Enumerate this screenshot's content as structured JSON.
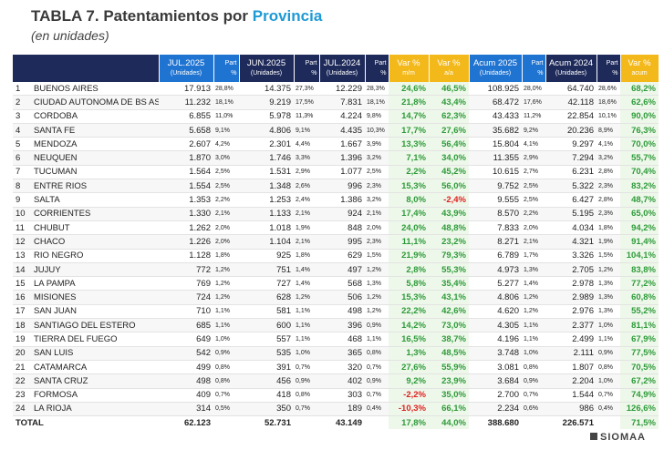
{
  "header": {
    "title": "TABLA 7. Patentamientos por",
    "title_highlight": "Provincia",
    "subtitle": "(en unidades)"
  },
  "table": {
    "columns": [
      {
        "label": "JUL.2025",
        "sub": "(Unidades)"
      },
      {
        "label": "Part",
        "sub": "%"
      },
      {
        "label": "JUN.2025",
        "sub": "(Unidades)"
      },
      {
        "label": "Part",
        "sub": "%"
      },
      {
        "label": "JUL.2024",
        "sub": "(Unidades)"
      },
      {
        "label": "Part",
        "sub": "%"
      },
      {
        "label": "Var %",
        "sub": "m/m"
      },
      {
        "label": "Var %",
        "sub": "a/a"
      },
      {
        "label": "Acum 2025",
        "sub": "(Unidades)"
      },
      {
        "label": "Part",
        "sub": "%"
      },
      {
        "label": "Acum 2024",
        "sub": "(Unidades)"
      },
      {
        "label": "Part",
        "sub": "%"
      },
      {
        "label": "Var %",
        "sub": "acum"
      }
    ],
    "rows": [
      [
        "1",
        "BUENOS AIRES",
        "17.913",
        "28,8%",
        "14.375",
        "27,3%",
        "12.229",
        "28,3%",
        "24,6%",
        "46,5%",
        "108.925",
        "28,0%",
        "64.740",
        "28,6%",
        "68,2%"
      ],
      [
        "2",
        "CIUDAD AUTONOMA DE BS AS",
        "11.232",
        "18,1%",
        "9.219",
        "17,5%",
        "7.831",
        "18,1%",
        "21,8%",
        "43,4%",
        "68.472",
        "17,6%",
        "42.118",
        "18,6%",
        "62,6%"
      ],
      [
        "3",
        "CORDOBA",
        "6.855",
        "11,0%",
        "5.978",
        "11,3%",
        "4.224",
        "9,8%",
        "14,7%",
        "62,3%",
        "43.433",
        "11,2%",
        "22.854",
        "10,1%",
        "90,0%"
      ],
      [
        "4",
        "SANTA FE",
        "5.658",
        "9,1%",
        "4.806",
        "9,1%",
        "4.435",
        "10,3%",
        "17,7%",
        "27,6%",
        "35.682",
        "9,2%",
        "20.236",
        "8,9%",
        "76,3%"
      ],
      [
        "5",
        "MENDOZA",
        "2.607",
        "4,2%",
        "2.301",
        "4,4%",
        "1.667",
        "3,9%",
        "13,3%",
        "56,4%",
        "15.804",
        "4,1%",
        "9.297",
        "4,1%",
        "70,0%"
      ],
      [
        "6",
        "NEUQUEN",
        "1.870",
        "3,0%",
        "1.746",
        "3,3%",
        "1.396",
        "3,2%",
        "7,1%",
        "34,0%",
        "11.355",
        "2,9%",
        "7.294",
        "3,2%",
        "55,7%"
      ],
      [
        "7",
        "TUCUMAN",
        "1.564",
        "2,5%",
        "1.531",
        "2,9%",
        "1.077",
        "2,5%",
        "2,2%",
        "45,2%",
        "10.615",
        "2,7%",
        "6.231",
        "2,8%",
        "70,4%"
      ],
      [
        "8",
        "ENTRE RIOS",
        "1.554",
        "2,5%",
        "1.348",
        "2,6%",
        "996",
        "2,3%",
        "15,3%",
        "56,0%",
        "9.752",
        "2,5%",
        "5.322",
        "2,3%",
        "83,2%"
      ],
      [
        "9",
        "SALTA",
        "1.353",
        "2,2%",
        "1.253",
        "2,4%",
        "1.386",
        "3,2%",
        "8,0%",
        "-2,4%",
        "9.555",
        "2,5%",
        "6.427",
        "2,8%",
        "48,7%"
      ],
      [
        "10",
        "CORRIENTES",
        "1.330",
        "2,1%",
        "1.133",
        "2,1%",
        "924",
        "2,1%",
        "17,4%",
        "43,9%",
        "8.570",
        "2,2%",
        "5.195",
        "2,3%",
        "65,0%"
      ],
      [
        "11",
        "CHUBUT",
        "1.262",
        "2,0%",
        "1.018",
        "1,9%",
        "848",
        "2,0%",
        "24,0%",
        "48,8%",
        "7.833",
        "2,0%",
        "4.034",
        "1,8%",
        "94,2%"
      ],
      [
        "12",
        "CHACO",
        "1.226",
        "2,0%",
        "1.104",
        "2,1%",
        "995",
        "2,3%",
        "11,1%",
        "23,2%",
        "8.271",
        "2,1%",
        "4.321",
        "1,9%",
        "91,4%"
      ],
      [
        "13",
        "RIO NEGRO",
        "1.128",
        "1,8%",
        "925",
        "1,8%",
        "629",
        "1,5%",
        "21,9%",
        "79,3%",
        "6.789",
        "1,7%",
        "3.326",
        "1,5%",
        "104,1%"
      ],
      [
        "14",
        "JUJUY",
        "772",
        "1,2%",
        "751",
        "1,4%",
        "497",
        "1,2%",
        "2,8%",
        "55,3%",
        "4.973",
        "1,3%",
        "2.705",
        "1,2%",
        "83,8%"
      ],
      [
        "15",
        "LA PAMPA",
        "769",
        "1,2%",
        "727",
        "1,4%",
        "568",
        "1,3%",
        "5,8%",
        "35,4%",
        "5.277",
        "1,4%",
        "2.978",
        "1,3%",
        "77,2%"
      ],
      [
        "16",
        "MISIONES",
        "724",
        "1,2%",
        "628",
        "1,2%",
        "506",
        "1,2%",
        "15,3%",
        "43,1%",
        "4.806",
        "1,2%",
        "2.989",
        "1,3%",
        "60,8%"
      ],
      [
        "17",
        "SAN JUAN",
        "710",
        "1,1%",
        "581",
        "1,1%",
        "498",
        "1,2%",
        "22,2%",
        "42,6%",
        "4.620",
        "1,2%",
        "2.976",
        "1,3%",
        "55,2%"
      ],
      [
        "18",
        "SANTIAGO DEL ESTERO",
        "685",
        "1,1%",
        "600",
        "1,1%",
        "396",
        "0,9%",
        "14,2%",
        "73,0%",
        "4.305",
        "1,1%",
        "2.377",
        "1,0%",
        "81,1%"
      ],
      [
        "19",
        "TIERRA DEL FUEGO",
        "649",
        "1,0%",
        "557",
        "1,1%",
        "468",
        "1,1%",
        "16,5%",
        "38,7%",
        "4.196",
        "1,1%",
        "2.499",
        "1,1%",
        "67,9%"
      ],
      [
        "20",
        "SAN LUIS",
        "542",
        "0,9%",
        "535",
        "1,0%",
        "365",
        "0,8%",
        "1,3%",
        "48,5%",
        "3.748",
        "1,0%",
        "2.111",
        "0,9%",
        "77,5%"
      ],
      [
        "21",
        "CATAMARCA",
        "499",
        "0,8%",
        "391",
        "0,7%",
        "320",
        "0,7%",
        "27,6%",
        "55,9%",
        "3.081",
        "0,8%",
        "1.807",
        "0,8%",
        "70,5%"
      ],
      [
        "22",
        "SANTA CRUZ",
        "498",
        "0,8%",
        "456",
        "0,9%",
        "402",
        "0,9%",
        "9,2%",
        "23,9%",
        "3.684",
        "0,9%",
        "2.204",
        "1,0%",
        "67,2%"
      ],
      [
        "23",
        "FORMOSA",
        "409",
        "0,7%",
        "418",
        "0,8%",
        "303",
        "0,7%",
        "-2,2%",
        "35,0%",
        "2.700",
        "0,7%",
        "1.544",
        "0,7%",
        "74,9%"
      ],
      [
        "24",
        "LA RIOJA",
        "314",
        "0,5%",
        "350",
        "0,7%",
        "189",
        "0,4%",
        "-10,3%",
        "66,1%",
        "2.234",
        "0,6%",
        "986",
        "0,4%",
        "126,6%"
      ]
    ],
    "total": {
      "label": "TOTAL",
      "values": [
        "62.123",
        null,
        "52.731",
        null,
        "43.149",
        null,
        "17,8%",
        "44,0%",
        "388.680",
        null,
        "226.571",
        null,
        "71,5%"
      ]
    }
  },
  "footer": {
    "logo": "SIOMAA"
  }
}
